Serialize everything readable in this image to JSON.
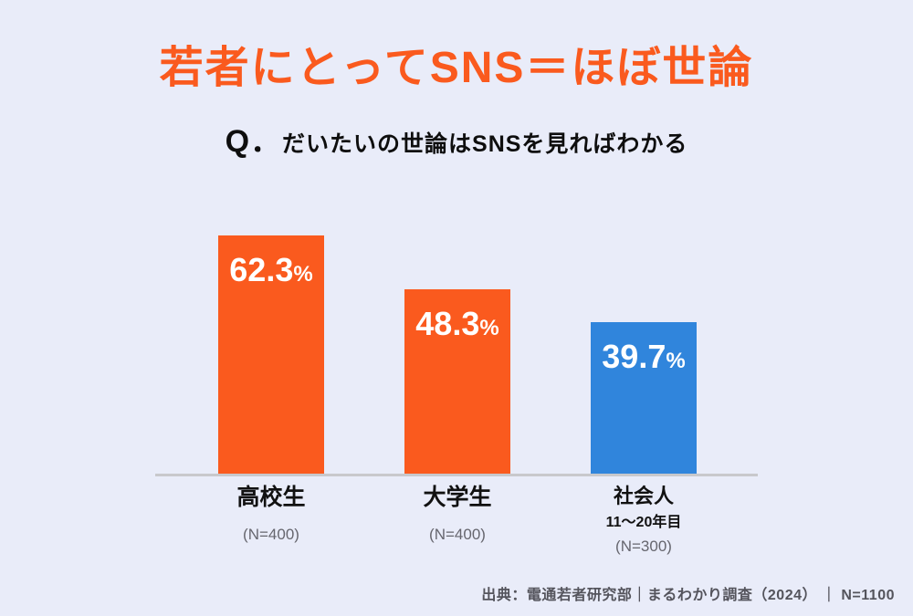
{
  "page": {
    "background": "#E9ECF9",
    "title": "若者にとってSNS＝ほぼ世論",
    "question_prefix": "Q．",
    "question_text": "だいたいの世論はSNSを見ればわかる",
    "source": "出典：電通若者研究部｜まるわかり調査（2024） ｜ N=1100",
    "colors": {
      "accent_orange": "#FA5A1E",
      "accent_blue": "#3085DC",
      "axis_gray": "#C8C8CC",
      "text_black": "#111111",
      "text_gray": "#66666E",
      "value_white": "#FFFFFF"
    }
  },
  "chart_data": {
    "type": "bar",
    "title": "若者にとってSNS＝ほぼ世論",
    "question": "Q. だいたいの世論はSNSを見ればわかる",
    "value_unit": "%",
    "ylim": [
      0,
      66
    ],
    "grid": false,
    "legend": false,
    "categories": [
      "高校生",
      "大学生",
      "社会人（11〜20年目）"
    ],
    "values": [
      62.3,
      48.3,
      39.7
    ],
    "bars": [
      {
        "label": "高校生",
        "sublabel": "",
        "n_label": "(N=400)",
        "value": "62.3",
        "unit": "%",
        "color": "#FA5A1E"
      },
      {
        "label": "大学生",
        "sublabel": "",
        "n_label": "(N=400)",
        "value": "48.3",
        "unit": "%",
        "color": "#FA5A1E"
      },
      {
        "label": "社会人",
        "sublabel": "11〜20年目",
        "n_label": "(N=300)",
        "value": "39.7",
        "unit": "%",
        "color": "#3085DC"
      }
    ],
    "source": "出典：電通若者研究部｜まるわかり調査（2024） ｜ N=1100"
  }
}
